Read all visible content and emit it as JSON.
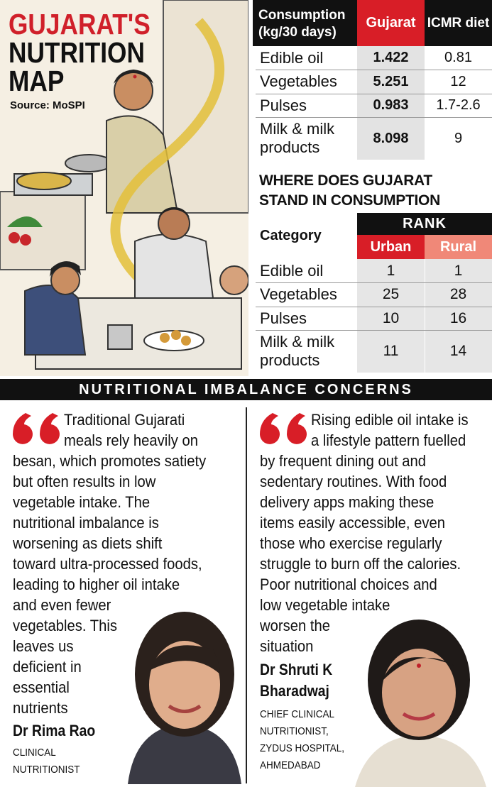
{
  "header": {
    "title_lines": [
      "GUJARAT'S",
      "NUTRITION",
      "MAP"
    ],
    "source": "Source: MoSPI"
  },
  "consumption_table": {
    "columns": [
      "Consumption (kg/30 days)",
      "Gujarat",
      "ICMR diet"
    ],
    "rows": [
      [
        "Edible oil",
        1.422,
        0.81
      ],
      [
        "Vegetables",
        5.251,
        12
      ],
      [
        "Pulses",
        0.983,
        "1.7-2.6"
      ],
      [
        "Milk & milk products",
        8.098,
        9
      ]
    ]
  },
  "rank_section": {
    "title": "WHERE DOES GUJARAT STAND IN CONSUMPTION",
    "category_header": "Category",
    "rank_header": "RANK",
    "columns": [
      "Urban",
      "Rural"
    ],
    "rows": [
      [
        "Edible oil",
        1,
        1
      ],
      [
        "Vegetables",
        25,
        28
      ],
      [
        "Pulses",
        10,
        16
      ],
      [
        "Milk & milk products",
        11,
        14
      ]
    ]
  },
  "banner": "NUTRITIONAL IMBALANCE CONCERNS",
  "quotes": [
    {
      "lines": [
        "Traditional Gujarati",
        "meals rely heavily on",
        "besan, which promotes satiety",
        "but often results in low",
        "vegetable intake. The",
        "nutritional imbalance is",
        "worsening as diets shift",
        "toward ultra-processed foods,",
        "leading to higher oil intake",
        "and even fewer",
        "vegetables. This",
        "leaves us",
        "deficient in",
        "essential",
        "nutrients"
      ],
      "name_lines": [
        "Dr Rima Rao"
      ],
      "role_lines": [
        "CLINICAL",
        "NUTRITIONIST"
      ]
    },
    {
      "lines": [
        "Rising edible oil intake is",
        "a lifestyle pattern fuelled",
        "by frequent dining out and",
        "sedentary routines. With food",
        "delivery apps making these",
        "items easily accessible, even",
        "those who exercise regularly",
        "struggle to burn off the calories.",
        "Poor nutritional choices and",
        "low vegetable intake",
        "worsen the",
        "situation"
      ],
      "name_lines": [
        "Dr Shruti K",
        "Bharadwaj"
      ],
      "role_lines": [
        "CHIEF CLINICAL",
        "NUTRITIONIST,",
        "ZYDUS HOSPITAL,",
        "AHMEDABAD"
      ]
    }
  ]
}
